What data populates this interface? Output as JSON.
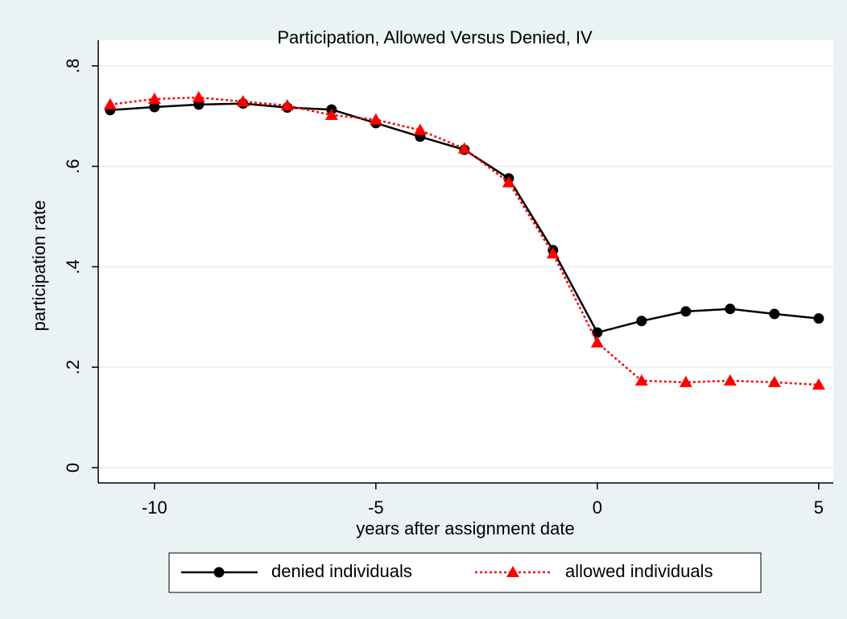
{
  "chart_data": {
    "type": "line",
    "title": "Participation, Allowed Versus Denied, IV",
    "x_label": "years after assignment date",
    "y_label": "participation rate",
    "x": [
      -11,
      -10,
      -9,
      -8,
      -7,
      -6,
      -5,
      -4,
      -3,
      -2,
      -1,
      0,
      1,
      2,
      3,
      4,
      5
    ],
    "series": [
      {
        "name": "denied individuals",
        "color": "#000000",
        "marker": "circle",
        "line_style": "solid",
        "values": [
          0.712,
          0.718,
          0.723,
          0.725,
          0.717,
          0.713,
          0.686,
          0.659,
          0.633,
          0.576,
          0.433,
          0.269,
          0.292,
          0.311,
          0.316,
          0.306,
          0.297
        ]
      },
      {
        "name": "allowed individuals",
        "color": "#ff0000",
        "marker": "triangle",
        "line_style": "dotted",
        "values": [
          0.723,
          0.734,
          0.737,
          0.729,
          0.721,
          0.702,
          0.693,
          0.672,
          0.635,
          0.568,
          0.426,
          0.249,
          0.173,
          0.17,
          0.173,
          0.17,
          0.165
        ]
      }
    ],
    "xlim": [
      -11.27,
      5.33
    ],
    "xticks": [
      -10,
      -5,
      0,
      5
    ],
    "ylim": [
      -0.0305,
      0.851
    ],
    "yticks": [
      0,
      {
        "value": 0.2,
        "label": ".2"
      },
      {
        "value": 0.4,
        "label": ".4"
      },
      {
        "value": 0.6,
        "label": ".6"
      },
      {
        "value": 0.8,
        "label": ".8"
      }
    ],
    "grid": true,
    "legend": "bottom"
  }
}
